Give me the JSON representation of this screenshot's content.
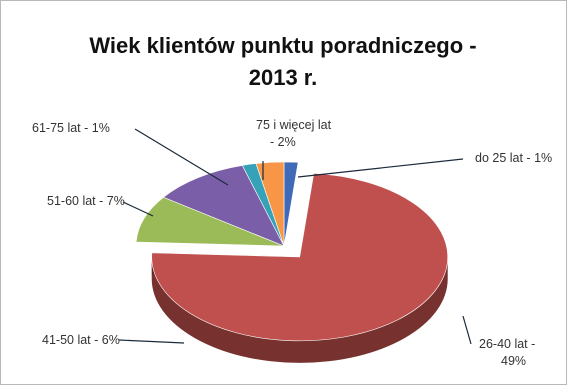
{
  "chart_data": {
    "type": "pie",
    "title": "Wiek klientów punktu poradniczego -",
    "title_line2": "2013 r.",
    "unit": "%",
    "slices": [
      {
        "label_lines": [
          "do 25 lat - 1%"
        ],
        "value": 1,
        "color": "#3f6ab8",
        "exploded": false
      },
      {
        "label_lines": [
          "26-40 lat -",
          "49%"
        ],
        "value": 49,
        "color": "#c0504d",
        "exploded": true
      },
      {
        "label_lines": [
          "41-50 lat - 6%"
        ],
        "value": 6,
        "color": "#9bbb59",
        "exploded": false
      },
      {
        "label_lines": [
          "51-60 lat - 7%"
        ],
        "value": 7,
        "color": "#7a5fa8",
        "exploded": false
      },
      {
        "label_lines": [
          "61-75 lat - 1%"
        ],
        "value": 1,
        "color": "#35a2b8",
        "exploded": false
      },
      {
        "label_lines": [
          "75  i więcej lat",
          "- 2%"
        ],
        "value": 2,
        "color": "#f79646",
        "exploded": false
      }
    ],
    "style": "3d-exploded-pie",
    "legend": "none (data labels with leader lines)"
  }
}
